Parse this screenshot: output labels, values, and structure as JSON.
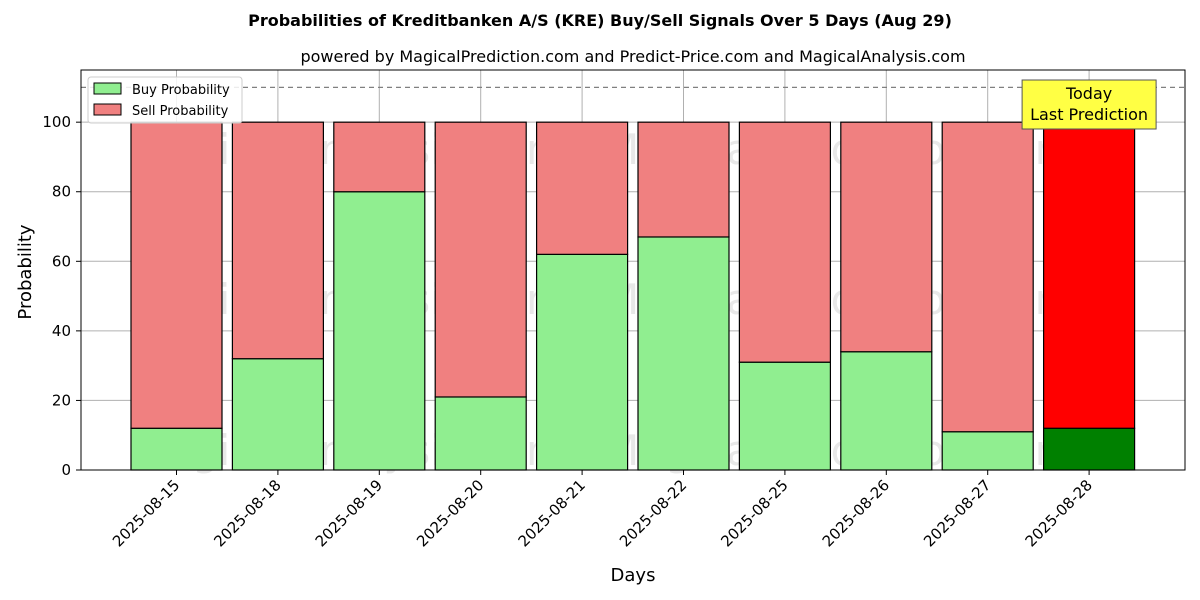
{
  "chart_data": {
    "type": "bar",
    "stacked": true,
    "title": "Probabilities of Kreditbanken A/S (KRE) Buy/Sell Signals Over 5 Days (Aug 29)",
    "subtitle": "powered by MagicalPrediction.com and Predict-Price.com and MagicalAnalysis.com",
    "xlabel": "Days",
    "ylabel": "Probability",
    "ylim": [
      0,
      115
    ],
    "yticks": [
      0,
      20,
      40,
      60,
      80,
      100
    ],
    "grid": true,
    "reference_line": 110,
    "categories": [
      "2025-08-15",
      "2025-08-18",
      "2025-08-19",
      "2025-08-20",
      "2025-08-21",
      "2025-08-22",
      "2025-08-25",
      "2025-08-26",
      "2025-08-27",
      "2025-08-28"
    ],
    "series": [
      {
        "name": "Buy Probability",
        "values": [
          12,
          32,
          80,
          21,
          62,
          67,
          31,
          34,
          11,
          12
        ]
      },
      {
        "name": "Sell Probability",
        "values": [
          88,
          68,
          20,
          79,
          38,
          33,
          69,
          66,
          89,
          88
        ]
      }
    ],
    "legend": {
      "placement": "top-left",
      "entries": [
        "Buy Probability",
        "Sell Probability"
      ]
    },
    "annotation": {
      "line1": "Today",
      "line2": "Last Prediction",
      "category_index": 9
    },
    "watermark": "MagicalAnalysis.com    MagicalPrediction.com"
  },
  "colors": {
    "buy": "#90ee90",
    "sell": "#f08080",
    "buy_highlight": "#008000",
    "sell_highlight": "#ff0000",
    "annotation_bg": "#ffff44"
  }
}
